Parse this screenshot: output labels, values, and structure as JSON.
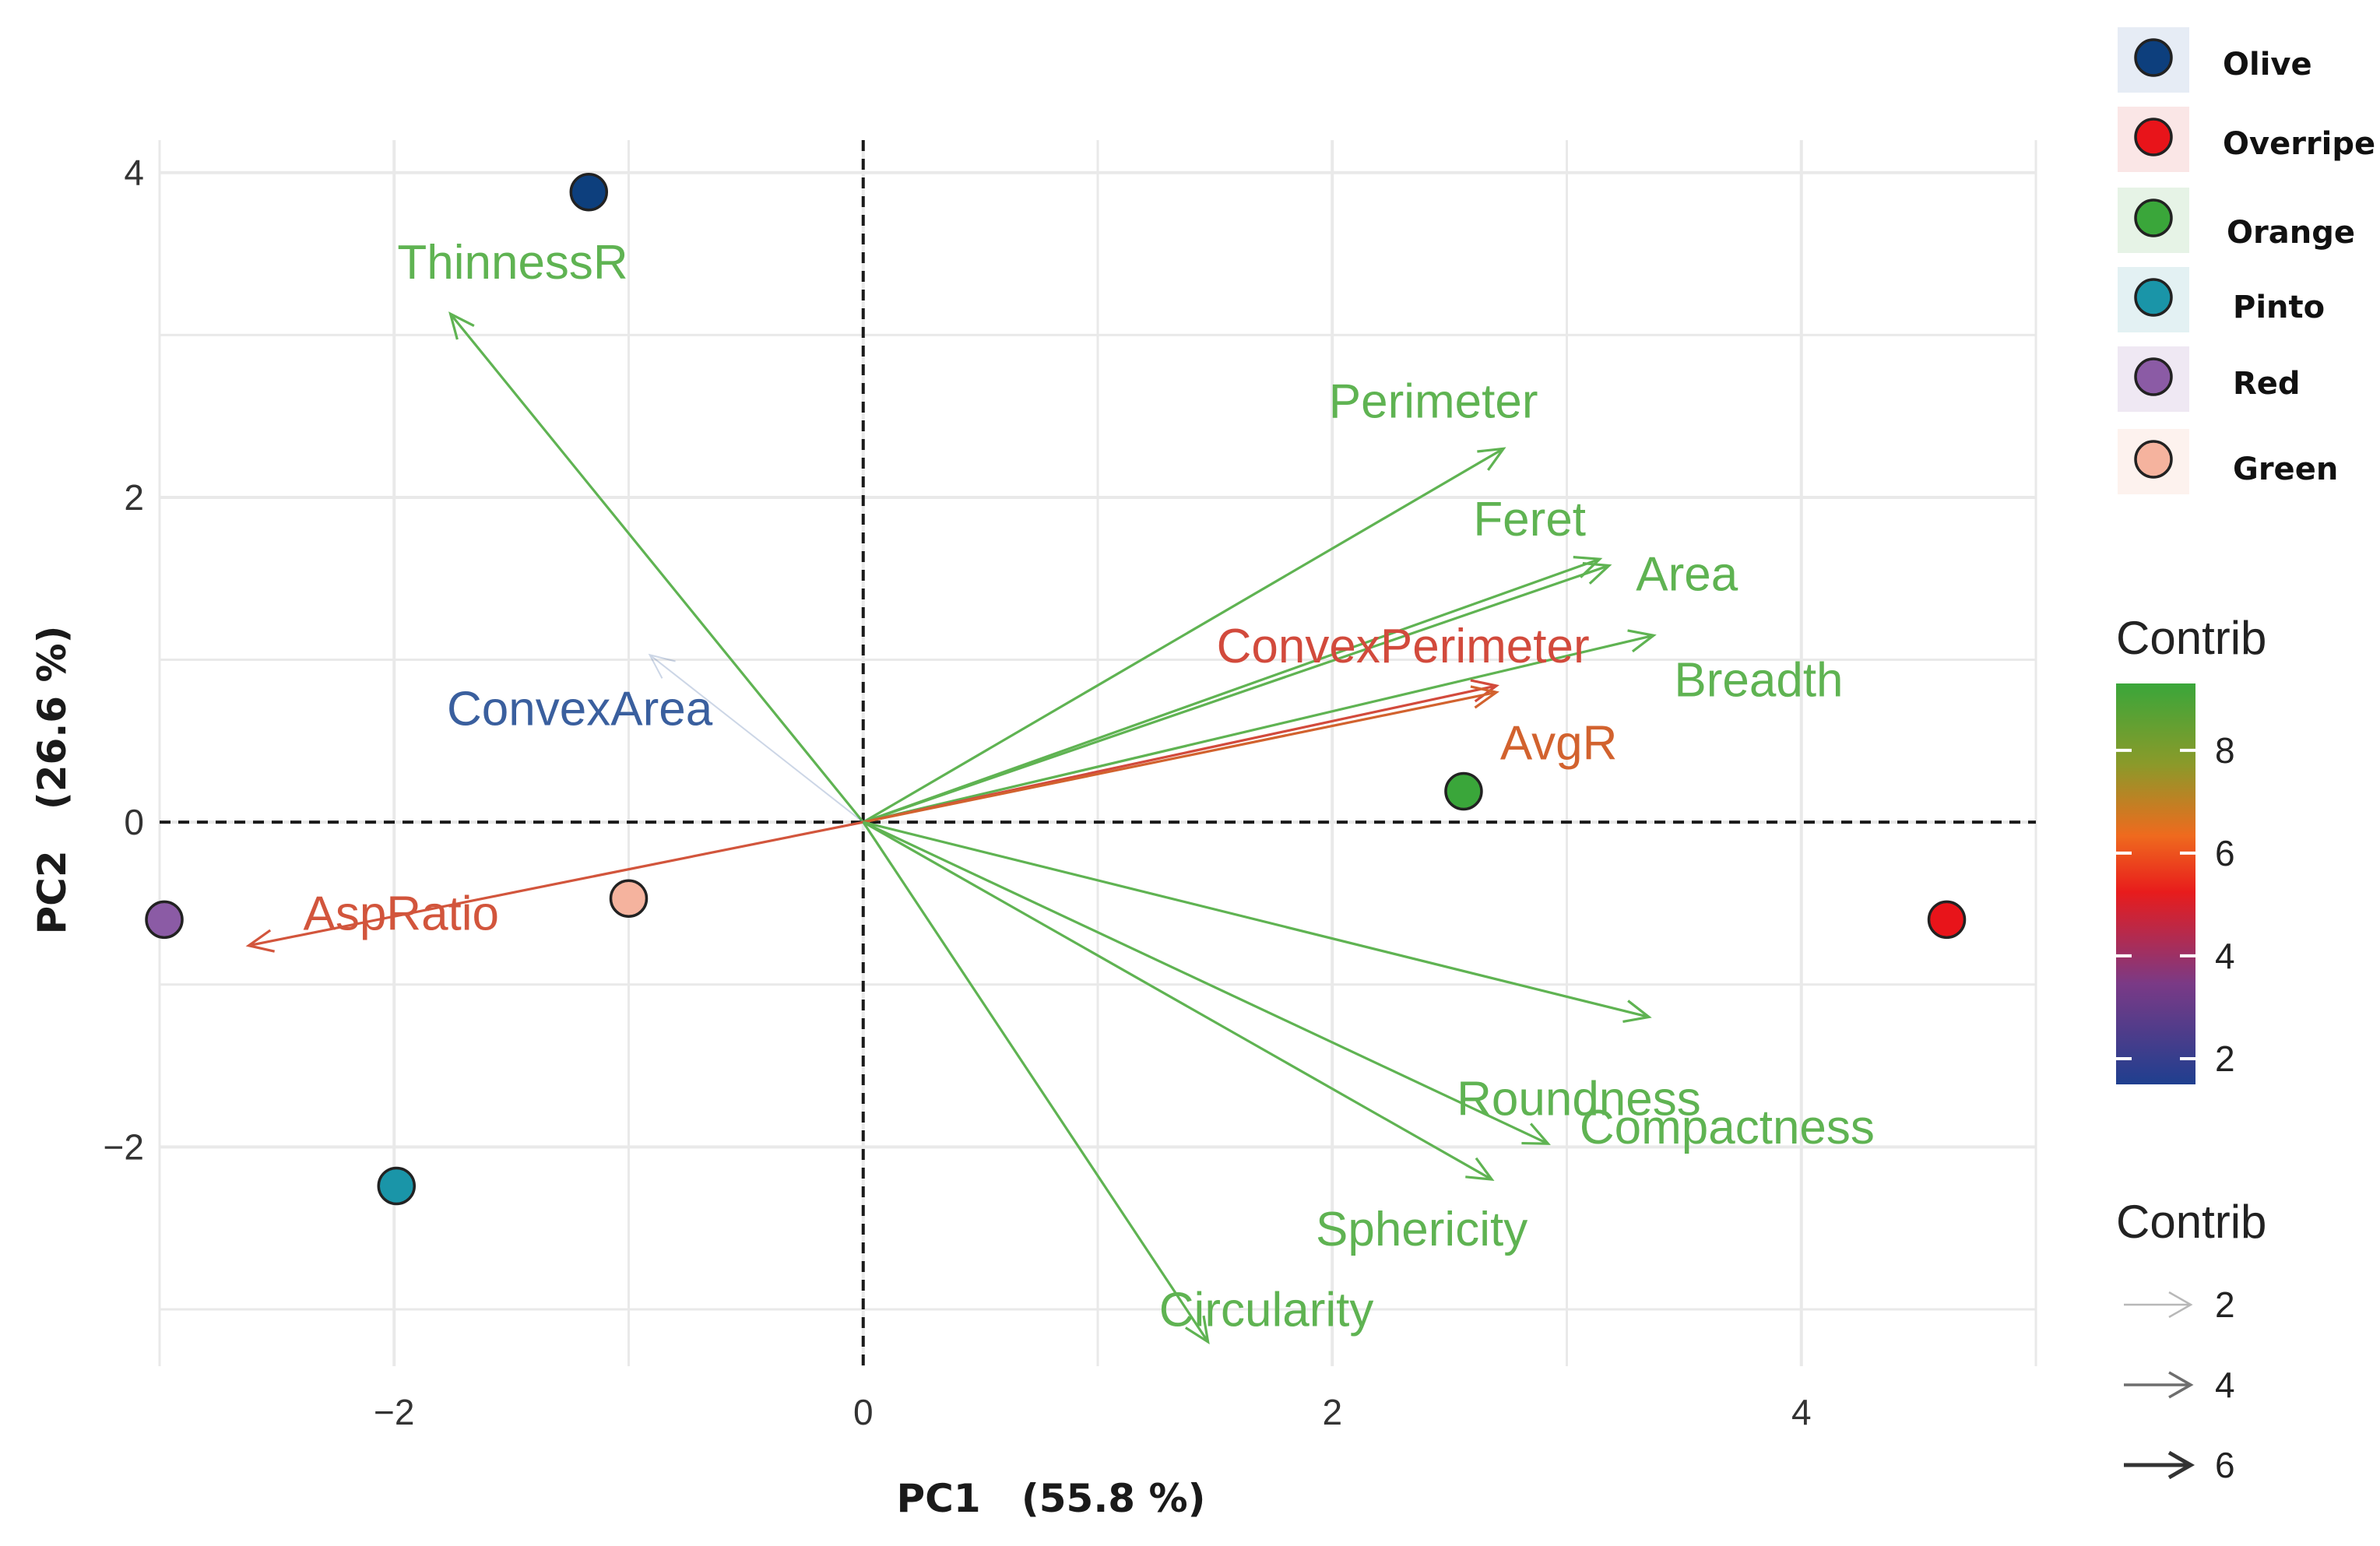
{
  "chart_data": {
    "type": "scatter",
    "subtype": "pca-biplot",
    "xlabel": "PC1   (55.8 %)",
    "ylabel": "PC2   (26.6 %)",
    "xlim": [
      -3.0,
      5.0
    ],
    "ylim": [
      -3.35,
      4.2
    ],
    "x_ticks": [
      {
        "value": -2,
        "label": "−2"
      },
      {
        "value": 0,
        "label": "0"
      },
      {
        "value": 2,
        "label": "2"
      },
      {
        "value": 4,
        "label": "4"
      }
    ],
    "y_ticks": [
      {
        "value": -2,
        "label": "−2"
      },
      {
        "value": 0,
        "label": "0"
      },
      {
        "value": 2,
        "label": "2"
      },
      {
        "value": 4,
        "label": "4"
      }
    ],
    "grid": true,
    "zero_lines": "dashed",
    "points": [
      {
        "name": "Olive",
        "x": -1.17,
        "y": 3.88,
        "color": "#0d3f7d"
      },
      {
        "name": "Overripe",
        "x": 4.62,
        "y": -0.6,
        "color": "#e8141a"
      },
      {
        "name": "Orange",
        "x": 2.56,
        "y": 0.19,
        "color": "#3aa63a"
      },
      {
        "name": "Pinto",
        "x": -1.99,
        "y": -2.24,
        "color": "#1a95a8"
      },
      {
        "name": "Red",
        "x": -2.98,
        "y": -0.6,
        "color": "#8b5ba5"
      },
      {
        "name": "Green",
        "x": -1.0,
        "y": -0.47,
        "color": "#f5b39e"
      }
    ],
    "variables": [
      {
        "name": "ThinnessR",
        "x": -1.76,
        "y": 3.13,
        "contrib": 9,
        "color": "#5fb352"
      },
      {
        "name": "Perimeter",
        "x": 2.73,
        "y": 2.3,
        "contrib": 9,
        "color": "#5fb352"
      },
      {
        "name": "Feret",
        "x": 3.14,
        "y": 1.62,
        "contrib": 9,
        "color": "#5fb352"
      },
      {
        "name": "Area",
        "x": 3.18,
        "y": 1.58,
        "contrib": 9,
        "color": "#5fb352"
      },
      {
        "name": "Breadth",
        "x": 3.37,
        "y": 1.15,
        "contrib": 9,
        "color": "#5fb352"
      },
      {
        "name": "ConvexPerimeter",
        "x": 2.7,
        "y": 0.84,
        "contrib": 6,
        "color": "#d24a3c"
      },
      {
        "name": "AvgR",
        "x": 2.7,
        "y": 0.8,
        "contrib": 6.5,
        "color": "#d2622e"
      },
      {
        "name": "ConvexArea",
        "x": -0.91,
        "y": 1.03,
        "contrib": 1.5,
        "color": "#3a5f9e"
      },
      {
        "name": "AspRatio",
        "x": -2.62,
        "y": -0.76,
        "contrib": 6,
        "color": "#d2553c"
      },
      {
        "name": "Roundness",
        "x": 3.35,
        "y": -1.2,
        "contrib": 9,
        "color": "#5fb352"
      },
      {
        "name": "Compactness",
        "x": 2.92,
        "y": -1.98,
        "contrib": 9,
        "color": "#5fb352"
      },
      {
        "name": "Sphericity",
        "x": 2.68,
        "y": -2.2,
        "contrib": 9,
        "color": "#5fb352"
      },
      {
        "name": "Circularity",
        "x": 1.47,
        "y": -3.2,
        "contrib": 9,
        "color": "#5fb352"
      }
    ],
    "legend": {
      "position": "right",
      "groups": [
        {
          "name": "Olive",
          "color": "#0d3f7d",
          "swatch_bg": "#e6ecf5"
        },
        {
          "name": "Overripe",
          "color": "#e8141a",
          "swatch_bg": "#fae6e6"
        },
        {
          "name": "Orange",
          "color": "#3aa63a",
          "swatch_bg": "#e6f3e6"
        },
        {
          "name": "Pinto",
          "color": "#1a95a8",
          "swatch_bg": "#e3f1f3"
        },
        {
          "name": "Red",
          "color": "#8b5ba5",
          "swatch_bg": "#efe8f3"
        },
        {
          "name": "Green",
          "color": "#f5b39e",
          "swatch_bg": "#fdf2ee"
        }
      ],
      "colorbar": {
        "title": "Contrib",
        "range": [
          1.5,
          9.3
        ],
        "ticks": [
          {
            "value": 2,
            "label": "2"
          },
          {
            "value": 4,
            "label": "4"
          },
          {
            "value": 6,
            "label": "6"
          },
          {
            "value": 8,
            "label": "8"
          }
        ],
        "gradient": [
          "#1f3f8f",
          "#7a3a86",
          "#e81c1c",
          "#ef6a1e",
          "#8a9a2a",
          "#3aa63a"
        ]
      },
      "size_legend": {
        "title": "Contrib",
        "entries": [
          {
            "value": 2,
            "label": "2",
            "color": "#b8b8b8"
          },
          {
            "value": 4,
            "label": "4",
            "color": "#6e6e6e"
          },
          {
            "value": 6,
            "label": "6",
            "color": "#333333"
          }
        ]
      }
    }
  }
}
